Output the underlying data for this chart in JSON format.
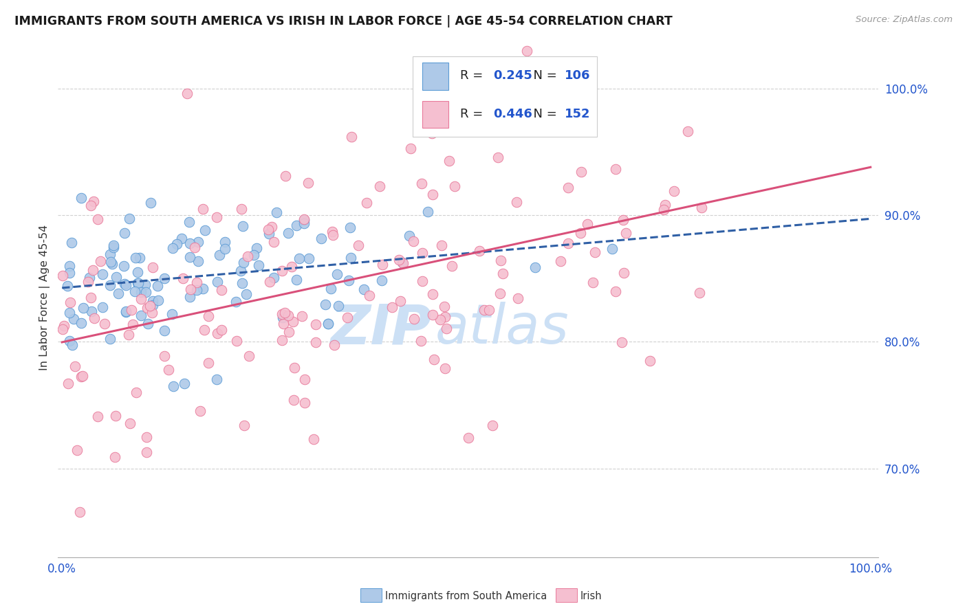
{
  "title": "IMMIGRANTS FROM SOUTH AMERICA VS IRISH IN LABOR FORCE | AGE 45-54 CORRELATION CHART",
  "source": "Source: ZipAtlas.com",
  "ylabel": "In Labor Force | Age 45-54",
  "blue_R": 0.245,
  "blue_N": 106,
  "pink_R": 0.446,
  "pink_N": 152,
  "blue_label": "Immigrants from South America",
  "pink_label": "Irish",
  "blue_scatter_color": "#aec9e8",
  "pink_scatter_color": "#f5bfd0",
  "blue_edge_color": "#5b9bd5",
  "pink_edge_color": "#e8799a",
  "blue_line_color": "#2f5fa5",
  "pink_line_color": "#d9507a",
  "legend_text_color": "#2255cc",
  "watermark_color": "#cce0f5",
  "seed_blue": 7,
  "seed_pink": 13,
  "xlim": [
    0,
    100
  ],
  "ylim": [
    63,
    104
  ],
  "yticks": [
    70,
    80,
    90,
    100
  ],
  "ytick_labels": [
    "70.0%",
    "80.0%",
    "90.0%",
    "100.0%"
  ]
}
